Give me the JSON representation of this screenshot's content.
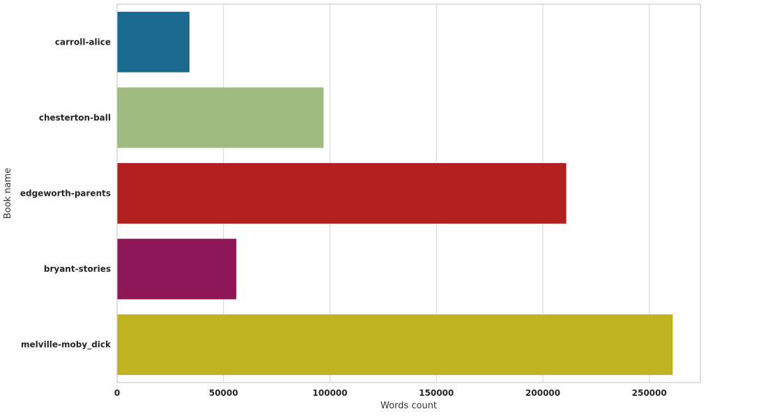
{
  "chart_data": {
    "type": "bar",
    "orientation": "horizontal",
    "categories": [
      "carroll-alice",
      "chesterton-ball",
      "edgeworth-parents",
      "bryant-stories",
      "melville-moby_dick"
    ],
    "values": [
      34000,
      97000,
      211000,
      56000,
      261000
    ],
    "colors": [
      "#1a6b8f",
      "#9fbb80",
      "#b0201e",
      "#8e1757",
      "#beb220"
    ],
    "xlabel": "Words count",
    "ylabel": "Book name",
    "xlim": [
      0,
      274000
    ],
    "xticks": [
      0,
      50000,
      100000,
      150000,
      200000,
      250000
    ],
    "xtick_labels": [
      "0",
      "50000",
      "100000",
      "150000",
      "200000",
      "250000"
    ],
    "grid": "vertical",
    "frame_color": "#cccccc",
    "grid_color": "#d3d3d3"
  }
}
